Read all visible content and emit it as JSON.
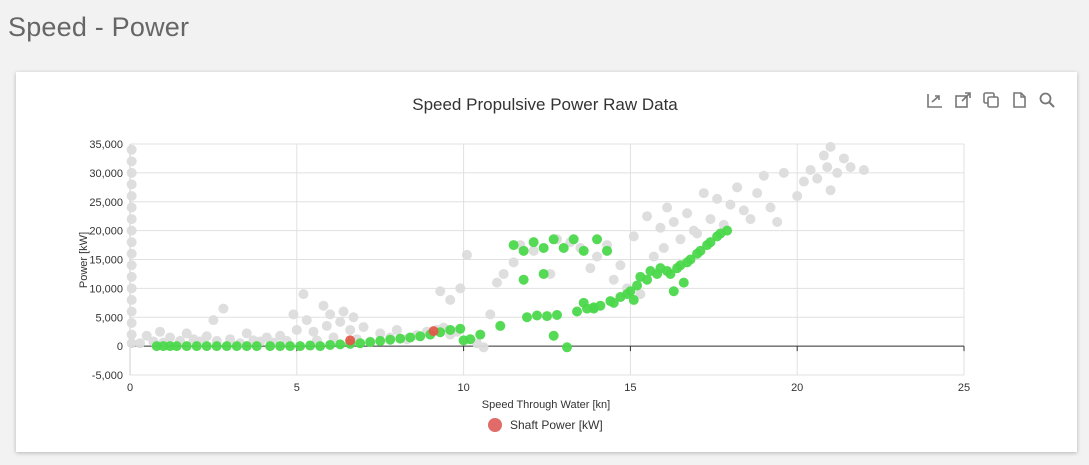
{
  "page": {
    "title": "Speed - Power"
  },
  "toolbar": {
    "icons": [
      "export-icon",
      "open-external-icon",
      "copy-icon",
      "document-icon",
      "zoom-icon"
    ]
  },
  "colors": {
    "grey_points": "#dcdcdc",
    "green_points": "#4cd84c",
    "red_points": "#e05a4a",
    "legend_swatch": "#e06b68",
    "grid": "#e0e0e0",
    "axis": "#333333"
  },
  "chart_data": {
    "type": "scatter",
    "title": "Speed Propulsive Power Raw Data",
    "xlabel": "Speed Through Water [kn]",
    "ylabel": "Power [kW]",
    "xlim": [
      0,
      25
    ],
    "ylim": [
      -5000,
      35000
    ],
    "x_ticks": [
      0,
      5,
      10,
      15,
      20,
      25
    ],
    "y_ticks": [
      -5000,
      0,
      5000,
      10000,
      15000,
      20000,
      25000,
      30000,
      35000
    ],
    "y_tick_labels": [
      "-5,000",
      "0",
      "5,000",
      "10,000",
      "15,000",
      "20,000",
      "25,000",
      "30,000",
      "35,000"
    ],
    "grid": true,
    "legend": {
      "position": "bottom-center",
      "label": "Shaft Power [kW]"
    },
    "series": [
      {
        "color_key": "grey_points",
        "points": [
          [
            0.05,
            34000
          ],
          [
            0.05,
            32000
          ],
          [
            0.05,
            30000
          ],
          [
            0.05,
            28000
          ],
          [
            0.05,
            26000
          ],
          [
            0.05,
            24000
          ],
          [
            0.05,
            22000
          ],
          [
            0.05,
            20000
          ],
          [
            0.05,
            18000
          ],
          [
            0.05,
            16000
          ],
          [
            0.05,
            14000
          ],
          [
            0.05,
            12000
          ],
          [
            0.05,
            10000
          ],
          [
            0.05,
            8000
          ],
          [
            0.05,
            6000
          ],
          [
            0.05,
            4000
          ],
          [
            0.05,
            2000
          ],
          [
            0.05,
            500
          ],
          [
            0.3,
            500
          ],
          [
            0.5,
            1800
          ],
          [
            0.7,
            800
          ],
          [
            0.9,
            2500
          ],
          [
            1.0,
            600
          ],
          [
            1.2,
            1500
          ],
          [
            1.5,
            900
          ],
          [
            1.7,
            2200
          ],
          [
            1.9,
            1200
          ],
          [
            2.1,
            800
          ],
          [
            2.3,
            1700
          ],
          [
            2.5,
            4500
          ],
          [
            2.6,
            900
          ],
          [
            2.8,
            6500
          ],
          [
            3.0,
            1200
          ],
          [
            3.3,
            500
          ],
          [
            3.5,
            2200
          ],
          [
            3.7,
            1000
          ],
          [
            3.9,
            800
          ],
          [
            4.1,
            1500
          ],
          [
            4.3,
            600
          ],
          [
            4.5,
            1800
          ],
          [
            4.7,
            900
          ],
          [
            4.9,
            5500
          ],
          [
            5.0,
            2800
          ],
          [
            5.2,
            9000
          ],
          [
            5.3,
            4500
          ],
          [
            5.5,
            2500
          ],
          [
            5.6,
            1000
          ],
          [
            5.8,
            7000
          ],
          [
            5.9,
            3500
          ],
          [
            6.0,
            5500
          ],
          [
            6.1,
            1500
          ],
          [
            6.3,
            4200
          ],
          [
            6.4,
            6000
          ],
          [
            6.6,
            2800
          ],
          [
            6.7,
            5000
          ],
          [
            6.8,
            1200
          ],
          [
            7.0,
            3300
          ],
          [
            7.2,
            800
          ],
          [
            7.5,
            2200
          ],
          [
            7.8,
            1500
          ],
          [
            8.0,
            2800
          ],
          [
            8.3,
            1200
          ],
          [
            8.6,
            1900
          ],
          [
            8.9,
            2500
          ],
          [
            9.2,
            2800
          ],
          [
            9.4,
            3200
          ],
          [
            9.6,
            2000
          ],
          [
            9.8,
            2500
          ],
          [
            9.3,
            9500
          ],
          [
            9.6,
            8000
          ],
          [
            9.9,
            10000
          ],
          [
            10.1,
            15800
          ],
          [
            10.4,
            500
          ],
          [
            10.6,
            -200
          ],
          [
            10.8,
            5500
          ],
          [
            11.0,
            11000
          ],
          [
            11.2,
            12500
          ],
          [
            11.5,
            14500
          ],
          [
            11.7,
            17500
          ],
          [
            12.1,
            16500
          ],
          [
            12.6,
            12500
          ],
          [
            12.8,
            18500
          ],
          [
            13.2,
            18000
          ],
          [
            13.5,
            17000
          ],
          [
            13.8,
            13500
          ],
          [
            14.0,
            15500
          ],
          [
            14.3,
            17500
          ],
          [
            14.5,
            11500
          ],
          [
            14.7,
            14000
          ],
          [
            14.9,
            10000
          ],
          [
            15.1,
            19000
          ],
          [
            15.3,
            9000
          ],
          [
            15.5,
            22500
          ],
          [
            15.7,
            15500
          ],
          [
            15.9,
            20500
          ],
          [
            16.0,
            17000
          ],
          [
            16.1,
            24000
          ],
          [
            16.3,
            21500
          ],
          [
            16.5,
            18500
          ],
          [
            16.7,
            23000
          ],
          [
            16.9,
            20000
          ],
          [
            17.0,
            19500
          ],
          [
            17.2,
            26500
          ],
          [
            17.4,
            22000
          ],
          [
            17.6,
            25500
          ],
          [
            17.8,
            21000
          ],
          [
            18.0,
            24500
          ],
          [
            18.2,
            27500
          ],
          [
            18.4,
            23500
          ],
          [
            18.6,
            22000
          ],
          [
            18.8,
            26500
          ],
          [
            19.0,
            29500
          ],
          [
            19.2,
            24000
          ],
          [
            19.4,
            21500
          ],
          [
            19.6,
            30000
          ],
          [
            20.0,
            26000
          ],
          [
            20.2,
            28500
          ],
          [
            20.4,
            30500
          ],
          [
            20.6,
            29000
          ],
          [
            20.8,
            33000
          ],
          [
            20.9,
            31000
          ],
          [
            21.0,
            34500
          ],
          [
            21.2,
            30000
          ],
          [
            21.4,
            32500
          ],
          [
            21.6,
            31000
          ],
          [
            22.0,
            30500
          ],
          [
            21.0,
            27000
          ]
        ]
      },
      {
        "color_key": "green_points",
        "points": [
          [
            0.8,
            0
          ],
          [
            1.0,
            0
          ],
          [
            1.2,
            0
          ],
          [
            1.4,
            0
          ],
          [
            1.7,
            0
          ],
          [
            2.0,
            0
          ],
          [
            2.3,
            0
          ],
          [
            2.6,
            0
          ],
          [
            2.9,
            0
          ],
          [
            3.2,
            0
          ],
          [
            3.5,
            0
          ],
          [
            3.8,
            0
          ],
          [
            4.2,
            0
          ],
          [
            4.5,
            0
          ],
          [
            4.8,
            0
          ],
          [
            5.1,
            0
          ],
          [
            5.4,
            100
          ],
          [
            5.7,
            0
          ],
          [
            6.0,
            200
          ],
          [
            6.3,
            300
          ],
          [
            6.6,
            400
          ],
          [
            6.9,
            500
          ],
          [
            7.2,
            700
          ],
          [
            7.5,
            900
          ],
          [
            7.8,
            1100
          ],
          [
            8.1,
            1300
          ],
          [
            8.4,
            1500
          ],
          [
            8.7,
            1700
          ],
          [
            9.0,
            2000
          ],
          [
            9.3,
            2400
          ],
          [
            9.6,
            2800
          ],
          [
            9.9,
            3000
          ],
          [
            10.0,
            1000
          ],
          [
            10.2,
            1200
          ],
          [
            10.5,
            2000
          ],
          [
            11.1,
            3500
          ],
          [
            11.9,
            5000
          ],
          [
            12.2,
            5300
          ],
          [
            12.5,
            5200
          ],
          [
            12.8,
            5400
          ],
          [
            13.1,
            -200
          ],
          [
            13.4,
            6000
          ],
          [
            13.7,
            6500
          ],
          [
            13.9,
            6700
          ],
          [
            14.1,
            7000
          ],
          [
            14.4,
            7800
          ],
          [
            14.7,
            8500
          ],
          [
            14.9,
            9000
          ],
          [
            15.2,
            10500
          ],
          [
            15.5,
            11500
          ],
          [
            15.8,
            12500
          ],
          [
            16.1,
            13000
          ],
          [
            16.4,
            13500
          ],
          [
            16.7,
            14500
          ],
          [
            17.0,
            16000
          ],
          [
            17.3,
            17500
          ],
          [
            17.6,
            19000
          ],
          [
            17.9,
            20000
          ],
          [
            11.5,
            17500
          ],
          [
            11.8,
            16500
          ],
          [
            12.1,
            18000
          ],
          [
            12.4,
            17000
          ],
          [
            12.7,
            18500
          ],
          [
            13.0,
            17000
          ],
          [
            13.3,
            18500
          ],
          [
            13.6,
            16500
          ],
          [
            14.0,
            18500
          ],
          [
            14.3,
            16500
          ],
          [
            11.8,
            11500
          ],
          [
            12.4,
            12500
          ],
          [
            12.7,
            1800
          ],
          [
            15.0,
            9500
          ],
          [
            15.3,
            12000
          ],
          [
            15.6,
            13000
          ],
          [
            15.9,
            13500
          ],
          [
            16.2,
            12500
          ],
          [
            16.5,
            14000
          ],
          [
            16.8,
            15000
          ],
          [
            17.1,
            16500
          ],
          [
            17.4,
            18000
          ],
          [
            17.7,
            19500
          ],
          [
            16.3,
            9500
          ],
          [
            16.6,
            11000
          ],
          [
            15.1,
            8000
          ],
          [
            14.5,
            7500
          ],
          [
            13.9,
            6500
          ],
          [
            13.6,
            7500
          ]
        ]
      },
      {
        "color_key": "red_points",
        "points": [
          [
            6.6,
            1000
          ],
          [
            9.1,
            2600
          ]
        ]
      }
    ]
  }
}
